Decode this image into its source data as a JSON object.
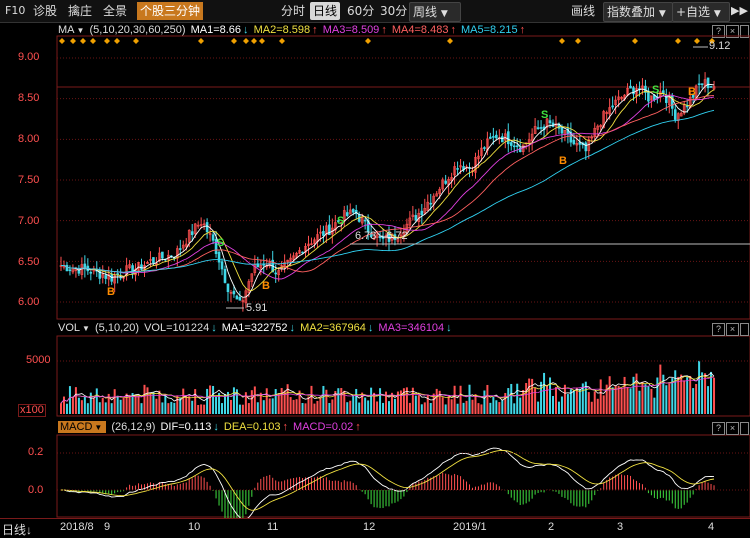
{
  "toolbar": {
    "f10": "F10",
    "diagnose": "诊股",
    "pick": "擒庄",
    "panorama": "全景",
    "stock_3min": "个股三分钟",
    "periods": [
      "分时",
      "日线",
      "60分",
      "30分"
    ],
    "active_period": "日线",
    "week_label": "周线",
    "draw_label": "画线",
    "index_overlay_label": "指数叠加",
    "add_custom_label": "+自选"
  },
  "ma_legend": {
    "name": "MA",
    "params": "(5,10,20,30,60,250)",
    "ma1": "MA1=8.66",
    "ma2": "MA2=8.598",
    "ma3": "MA3=8.509",
    "ma4": "MA4=8.483",
    "ma5": "MA5=8.215",
    "colors": {
      "ma1": "#ffffff",
      "ma2": "#f0e040",
      "ma3": "#e040e0",
      "ma4": "#ff6060",
      "ma5": "#30d0f0"
    }
  },
  "price_axis": [
    "9.00",
    "8.50",
    "8.00",
    "7.50",
    "7.00",
    "6.50",
    "6.00"
  ],
  "annotations": {
    "high": "9.12",
    "low": "5.91",
    "range": "6.73 - 6.72"
  },
  "signals": {
    "buy": "B",
    "sell": "S"
  },
  "vol_legend": {
    "name": "VOL",
    "params": "(5,10,20)",
    "vol": "VOL=101224",
    "ma1": "MA1=322752",
    "ma2": "MA2=367964",
    "ma3": "MA3=346104"
  },
  "vol_axis": [
    "5000",
    "x100"
  ],
  "macd_legend": {
    "name": "MACD",
    "params": "(26,12,9)",
    "dif": "DIF=0.113",
    "dea": "DEA=0.103",
    "macd": "MACD=0.02"
  },
  "macd_axis": [
    "0.2",
    "0.0"
  ],
  "bottom": {
    "period_label": "日线",
    "x_ticks": [
      "2018/8",
      "9",
      "10",
      "11",
      "12",
      "2019/1",
      "2",
      "3",
      "4"
    ]
  },
  "colors": {
    "up": "#ff5050",
    "down": "#40d8e8",
    "grid": "#6a1414",
    "accent": "#c8781e"
  },
  "chart_data": {
    "type": "candlestick",
    "ylim": [
      5.8,
      9.3
    ],
    "close_series_hint": [
      6.45,
      6.42,
      6.4,
      6.35,
      6.3,
      6.38,
      6.42,
      6.5,
      6.55,
      6.6,
      6.82,
      7.0,
      6.7,
      6.2,
      5.95,
      6.4,
      6.5,
      6.35,
      6.5,
      6.7,
      6.8,
      6.9,
      7.05,
      7.1,
      6.9,
      6.75,
      6.8,
      6.95,
      7.1,
      7.3,
      7.5,
      7.7,
      7.65,
      7.9,
      8.05,
      8.0,
      7.9,
      8.1,
      8.2,
      8.1,
      7.95,
      7.85,
      8.2,
      8.4,
      8.55,
      8.65,
      8.5,
      8.6,
      8.3,
      8.45,
      8.7,
      8.66
    ]
  }
}
